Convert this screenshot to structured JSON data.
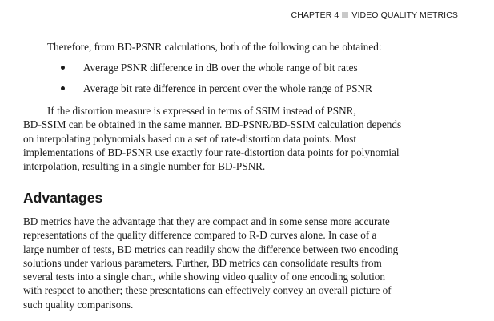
{
  "header": {
    "chapter": "CHAPTER 4",
    "section": "VIDEO QUALITY METRICS"
  },
  "intro": "Therefore, from BD-PSNR calculations, both of the following can be obtained:",
  "bullets": [
    "Average PSNR difference in dB over the whole range of bit rates",
    "Average bit rate difference in percent over the whole range of PSNR"
  ],
  "paragraph2": [
    "If the distortion measure is expressed in terms of SSIM instead of PSNR,",
    "BD-SSIM can be obtained in the same manner. BD-PSNR/BD-SSIM calculation depends",
    "on interpolating polynomials based on a set of rate-distortion data points. Most",
    "implementations of BD-PSNR use exactly four rate-distortion data points for polynomial",
    "interpolation, resulting in a single number for BD-PSNR."
  ],
  "heading": "Advantages",
  "paragraph3": [
    "BD metrics have the advantage that they are compact and in some sense more accurate",
    "representations of the quality difference compared to R-D curves alone. In case of a",
    "large number of tests, BD metrics can readily show the difference between two encoding",
    "solutions under various parameters. Further, BD metrics can consolidate results from",
    "several tests into a single chart, while showing video quality of one encoding solution",
    "with respect to another; these presentations can effectively convey an overall picture of",
    "such quality comparisons."
  ]
}
